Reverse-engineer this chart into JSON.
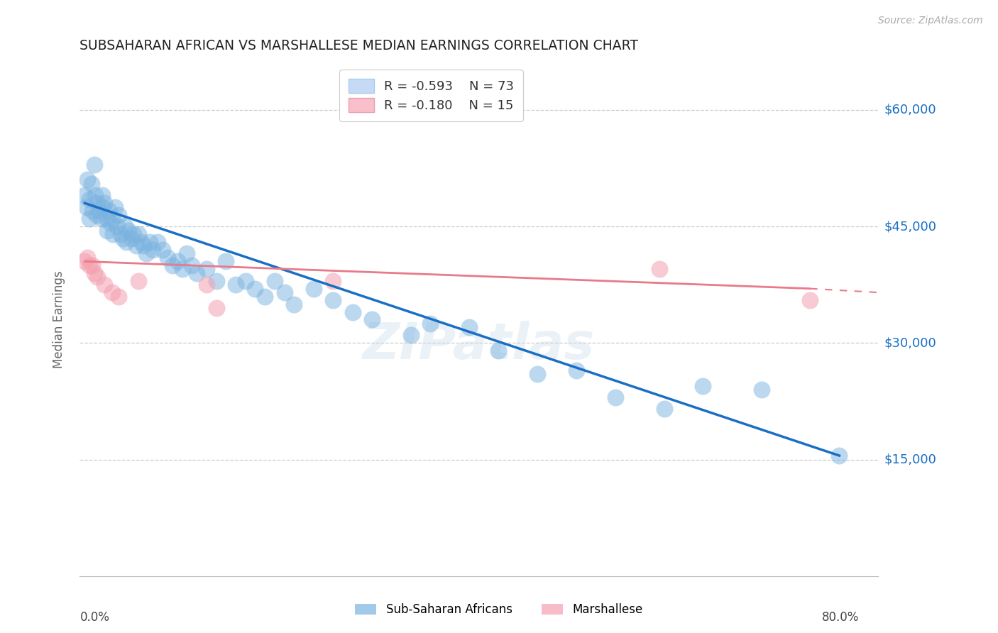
{
  "title": "SUBSAHARAN AFRICAN VS MARSHALLESE MEDIAN EARNINGS CORRELATION CHART",
  "source": "Source: ZipAtlas.com",
  "ylabel": "Median Earnings",
  "ytick_vals": [
    0,
    15000,
    30000,
    45000,
    60000
  ],
  "ytick_labels": [
    "",
    "$15,000",
    "$30,000",
    "$45,000",
    "$60,000"
  ],
  "xlim": [
    0.0,
    0.82
  ],
  "ylim": [
    0,
    66000
  ],
  "bg": "#ffffff",
  "grid_color": "#cccccc",
  "blue_scatter_color": "#7ab3e0",
  "blue_line_color": "#1a6fc4",
  "pink_scatter_color": "#f4a0b0",
  "pink_line_color": "#e87a8a",
  "legend_R_blue": "R = -0.593",
  "legend_N_blue": "N = 73",
  "legend_R_pink": "R = -0.180",
  "legend_N_pink": "N = 15",
  "watermark": "ZIPatlas",
  "blue_x": [
    0.005,
    0.007,
    0.008,
    0.01,
    0.01,
    0.012,
    0.013,
    0.015,
    0.016,
    0.017,
    0.018,
    0.02,
    0.022,
    0.023,
    0.024,
    0.025,
    0.027,
    0.028,
    0.03,
    0.031,
    0.033,
    0.034,
    0.036,
    0.038,
    0.04,
    0.042,
    0.044,
    0.046,
    0.048,
    0.05,
    0.053,
    0.055,
    0.058,
    0.06,
    0.063,
    0.065,
    0.068,
    0.072,
    0.075,
    0.08,
    0.085,
    0.09,
    0.095,
    0.1,
    0.105,
    0.11,
    0.115,
    0.12,
    0.13,
    0.14,
    0.15,
    0.16,
    0.17,
    0.18,
    0.19,
    0.2,
    0.21,
    0.22,
    0.24,
    0.26,
    0.28,
    0.3,
    0.34,
    0.36,
    0.4,
    0.43,
    0.47,
    0.51,
    0.55,
    0.6,
    0.64,
    0.7,
    0.78
  ],
  "blue_y": [
    49000,
    47500,
    51000,
    48500,
    46000,
    50500,
    47000,
    53000,
    49000,
    46500,
    48000,
    47000,
    46000,
    49000,
    47500,
    48000,
    46000,
    44500,
    47000,
    45500,
    46000,
    44000,
    47500,
    45000,
    46500,
    44000,
    43500,
    45000,
    43000,
    44500,
    43500,
    44000,
    42500,
    44000,
    43000,
    42500,
    41500,
    43000,
    42000,
    43000,
    42000,
    41000,
    40000,
    40500,
    39500,
    41500,
    40000,
    39000,
    39500,
    38000,
    40500,
    37500,
    38000,
    37000,
    36000,
    38000,
    36500,
    35000,
    37000,
    35500,
    34000,
    33000,
    31000,
    32500,
    32000,
    29000,
    26000,
    26500,
    23000,
    21500,
    24500,
    24000,
    15500
  ],
  "pink_x": [
    0.005,
    0.008,
    0.01,
    0.013,
    0.015,
    0.018,
    0.025,
    0.033,
    0.04,
    0.06,
    0.13,
    0.14,
    0.26,
    0.595,
    0.75
  ],
  "pink_y": [
    40500,
    41000,
    40000,
    40000,
    39000,
    38500,
    37500,
    36500,
    36000,
    38000,
    37500,
    34500,
    38000,
    39500,
    35500
  ]
}
